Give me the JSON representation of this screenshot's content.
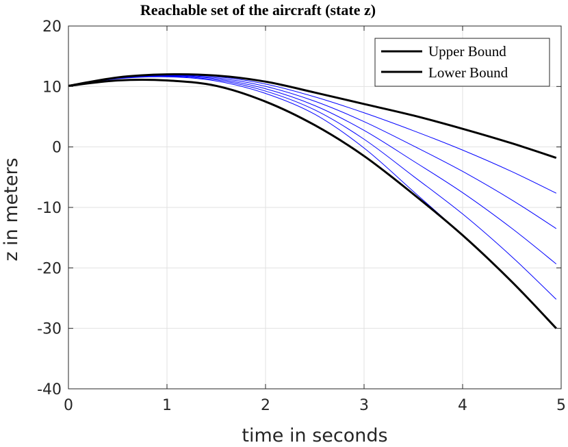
{
  "chart_data": {
    "type": "line",
    "title": "Reachable set of the aircraft (state z)",
    "xlabel": "time in seconds",
    "ylabel": "z in meters",
    "xlim": [
      0,
      5
    ],
    "ylim": [
      -40,
      20
    ],
    "xticks": [
      "0",
      "1",
      "2",
      "3",
      "4",
      "5"
    ],
    "yticks": [
      "20",
      "10",
      "0",
      "-10",
      "-20",
      "-30",
      "-40"
    ],
    "grid": true,
    "legend": {
      "placement": "top-right",
      "entries": [
        "Upper Bound",
        "Lower Bound"
      ]
    },
    "colors": {
      "bound": "#000000",
      "trajectory": "#0000ff"
    },
    "series": [
      {
        "name": "Upper Bound",
        "color": "#000000",
        "x": [
          0,
          0.5,
          1,
          1.5,
          2,
          2.5,
          3,
          3.5,
          4,
          4.5,
          4.95
        ],
        "y": [
          10.1,
          11.5,
          12.0,
          11.8,
          10.8,
          9.0,
          7.1,
          5.2,
          3.0,
          0.6,
          -1.8
        ]
      },
      {
        "name": "Lower Bound",
        "color": "#000000",
        "x": [
          0,
          0.5,
          1,
          1.5,
          2,
          2.5,
          3,
          3.5,
          4,
          4.5,
          4.95
        ],
        "y": [
          10.1,
          11.0,
          11.0,
          10.1,
          7.5,
          3.6,
          -1.5,
          -7.8,
          -14.6,
          -22.3,
          -30.0
        ]
      },
      {
        "color": "#0000ff",
        "x": [
          0,
          0.5,
          1,
          1.5,
          2,
          2.5,
          3,
          3.5,
          4,
          4.5,
          4.95
        ],
        "y": [
          10.1,
          11.46,
          11.92,
          11.62,
          10.41,
          8.28,
          5.65,
          2.69,
          -0.52,
          -4.08,
          -7.65
        ]
      },
      {
        "color": "#0000ff",
        "x": [
          0,
          0.5,
          1,
          1.5,
          2,
          2.5,
          3,
          3.5,
          4,
          4.5,
          4.95
        ],
        "y": [
          10.1,
          11.41,
          11.84,
          11.44,
          10.02,
          7.56,
          4.19,
          0.18,
          -4.04,
          -8.77,
          -13.5
        ]
      },
      {
        "color": "#0000ff",
        "x": [
          0,
          0.5,
          1,
          1.5,
          2,
          2.5,
          3,
          3.5,
          4,
          4.5,
          4.95
        ],
        "y": [
          10.1,
          11.37,
          11.76,
          11.26,
          9.63,
          6.84,
          2.74,
          -2.33,
          -7.56,
          -13.47,
          -19.35
        ]
      },
      {
        "color": "#0000ff",
        "x": [
          0,
          0.5,
          1,
          1.5,
          2,
          2.5,
          3,
          3.5,
          4,
          4.5,
          4.95
        ],
        "y": [
          10.1,
          11.32,
          11.68,
          11.08,
          9.24,
          6.12,
          1.28,
          -4.84,
          -11.08,
          -18.16,
          -25.2
        ]
      },
      {
        "color": "#0000ff",
        "x": [
          0,
          0.5,
          1,
          1.5,
          2,
          2.5,
          3,
          3.5,
          4,
          4.5,
          4.95
        ],
        "y": [
          10.1,
          11.28,
          11.6,
          10.9,
          8.85,
          5.4,
          -0.18,
          -7.35,
          -14.6,
          -22.3,
          -30.0
        ]
      }
    ]
  }
}
